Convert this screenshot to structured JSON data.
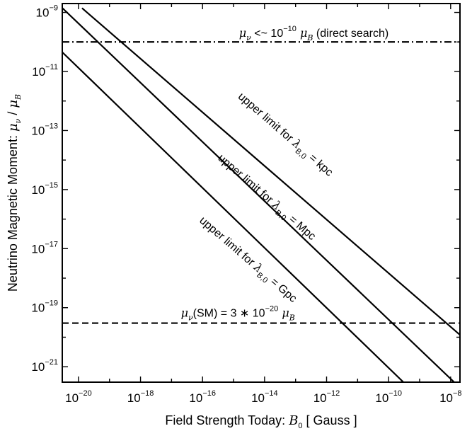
{
  "chart_data": {
    "type": "line",
    "xscale": "log",
    "yscale": "log",
    "xlim": [
      3e-21,
      2e-08
    ],
    "ylim": [
      3e-22,
      2e-09
    ],
    "grid": false,
    "xlabel": {
      "main": "Field Strength Today: ",
      "symbol": "B",
      "sub": "0",
      "unit": "[ Gauss ]"
    },
    "ylabel": {
      "main": "Neutrino Magnetic Moment: ",
      "symbol": "μ",
      "sub": "ν",
      "sep": "/",
      "symbol2": "μ",
      "sub2": "B"
    },
    "xticks": [
      {
        "value": 1e-20,
        "base": "10",
        "exp": "−20"
      },
      {
        "value": 1e-18,
        "base": "10",
        "exp": "−18"
      },
      {
        "value": 1e-16,
        "base": "10",
        "exp": "−16"
      },
      {
        "value": 1e-14,
        "base": "10",
        "exp": "−14"
      },
      {
        "value": 1e-12,
        "base": "10",
        "exp": "−12"
      },
      {
        "value": 1e-10,
        "base": "10",
        "exp": "−10"
      },
      {
        "value": 1e-08,
        "base": "10",
        "exp": "−8"
      }
    ],
    "yticks": [
      {
        "value": 1e-21,
        "base": "10",
        "exp": "−21"
      },
      {
        "value": 1e-19,
        "base": "10",
        "exp": "−19"
      },
      {
        "value": 1e-17,
        "base": "10",
        "exp": "−17"
      },
      {
        "value": 1e-15,
        "base": "10",
        "exp": "−15"
      },
      {
        "value": 1e-13,
        "base": "10",
        "exp": "−13"
      },
      {
        "value": 1e-11,
        "base": "10",
        "exp": "−11"
      },
      {
        "value": 1e-09,
        "base": "10",
        "exp": "−9"
      }
    ],
    "series": [
      {
        "style": "solid",
        "points": [
          [
            1.3e-20,
            1.4e-09
          ],
          [
            2e-08,
            1.2e-20
          ]
        ],
        "label": {
          "prefix": "upper limit for ",
          "symbol": "λ",
          "sub": "B,0",
          "suffix": " = kpc",
          "anchor": [
            4e-14,
            6e-14
          ]
        }
      },
      {
        "style": "solid",
        "points": [
          [
            2.5e-21,
            1.7e-09
          ],
          [
            1.3e-08,
            3e-22
          ]
        ],
        "label": {
          "prefix": "upper limit for ",
          "symbol": "λ",
          "sub": "B,0",
          "suffix": " = Mpc",
          "anchor": [
            1e-14,
            4.5e-16
          ]
        }
      },
      {
        "style": "solid",
        "points": [
          [
            3e-21,
            4.5e-11
          ],
          [
            3e-10,
            3e-22
          ]
        ],
        "label": {
          "prefix": "upper limit for ",
          "symbol": "λ",
          "sub": "B,0",
          "suffix": " = Gpc",
          "anchor": [
            2.5e-15,
            3.5e-18
          ]
        }
      },
      {
        "style": "dashdot",
        "hline": 1e-10,
        "label": {
          "symbol": "μ",
          "sub": "ν",
          "text1": " <~ 10",
          "exp": "−10",
          "symbol2": " μ",
          "sub2": "B",
          "text2": "  (direct search)",
          "anchor": [
            1.5e-15,
            1.5e-10
          ]
        }
      },
      {
        "style": "dashed",
        "hline": 3e-20,
        "label": {
          "symbol": "μ",
          "sub": "ν",
          "text1": "(SM) = 3 ∗ 10",
          "exp": "−20",
          "symbol2": " μ",
          "sub2": "B",
          "anchor": [
            2e-17,
            5e-20
          ]
        }
      }
    ]
  }
}
